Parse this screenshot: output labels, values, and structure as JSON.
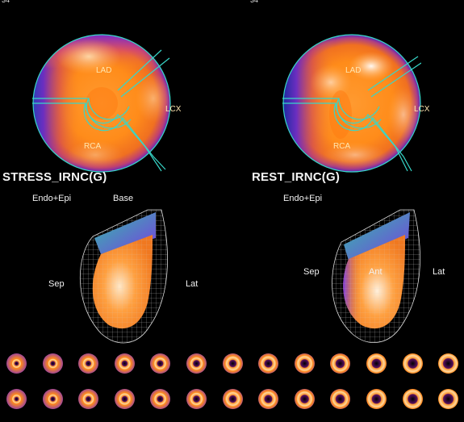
{
  "corner_numbers": {
    "left": "34",
    "right": "34"
  },
  "stress": {
    "title": "STRESS_IRNC(G)",
    "mode_label": "Endo+Epi",
    "view_label": "Base",
    "segments": {
      "lad": "LAD",
      "lcx": "LCX",
      "rca": "RCA"
    },
    "wall_labels": {
      "sep": "Sep",
      "lat": "Lat"
    }
  },
  "rest": {
    "title": "REST_IRNC(G)",
    "mode_label": "Endo+Epi",
    "segments": {
      "lad": "LAD",
      "lcx": "LCX",
      "rca": "RCA"
    },
    "wall_labels": {
      "sep": "Sep",
      "ant": "Ant",
      "lat": "Lat"
    }
  },
  "slices": {
    "stress_row_count": 13,
    "rest_row_count": 13
  },
  "colors": {
    "background": "#000000",
    "territory_line": "#37d6c8",
    "hot": "#ffffff",
    "warm": "#ff8a1a",
    "cool": "#7a2cc8",
    "cold": "#1a3aa0"
  }
}
